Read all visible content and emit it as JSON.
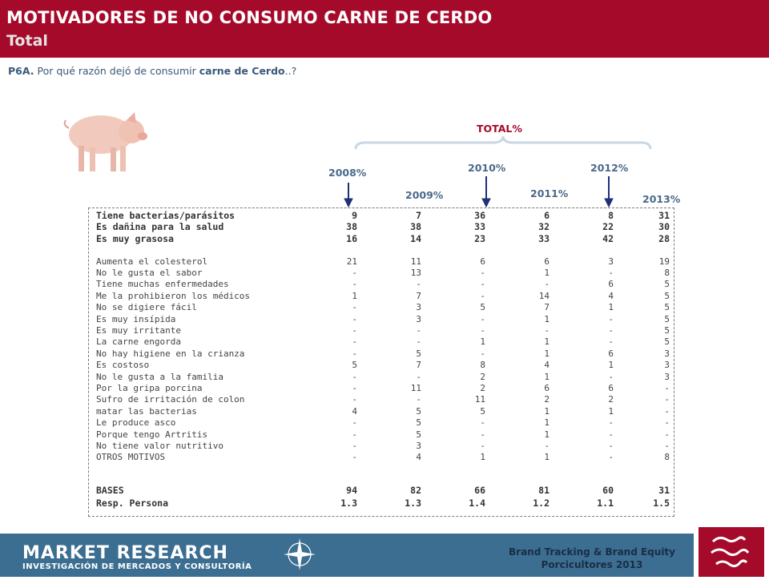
{
  "header": {
    "title": "MOTIVADORES DE NO CONSUMO CARNE DE CERDO",
    "subtitle": "Total"
  },
  "question": {
    "code": "P6A.",
    "text_before": "Por qué razón dejó de consumir",
    "highlight": "carne de Cerdo",
    "text_after": "..?"
  },
  "total_label": "TOTAL%",
  "years": [
    {
      "label": "2008%",
      "highlighted": true
    },
    {
      "label": "2009%",
      "highlighted": false
    },
    {
      "label": "2010%",
      "highlighted": true
    },
    {
      "label": "2011%",
      "highlighted": false
    },
    {
      "label": "2012%",
      "highlighted": true
    },
    {
      "label": "2013%",
      "highlighted": false
    }
  ],
  "rows": [
    {
      "label": "Tiene bacterias/parásitos",
      "values": [
        "9",
        "7",
        "36",
        "6",
        "8",
        "31"
      ],
      "bold": true
    },
    {
      "label": "Es dañina para la salud",
      "values": [
        "38",
        "38",
        "33",
        "32",
        "22",
        "30"
      ],
      "bold": true
    },
    {
      "label": "Es muy grasosa",
      "values": [
        "16",
        "14",
        "23",
        "33",
        "42",
        "28"
      ],
      "bold": true
    },
    {
      "label": "Aumenta el colesterol",
      "values": [
        "21",
        "11",
        "6",
        "6",
        "3",
        "19"
      ],
      "bold": false
    },
    {
      "label": "No le gusta el sabor",
      "values": [
        "-",
        "13",
        "-",
        "1",
        "-",
        "8"
      ],
      "bold": false
    },
    {
      "label": "Tiene muchas enfermedades",
      "values": [
        "-",
        "-",
        "-",
        "-",
        "6",
        "5"
      ],
      "bold": false
    },
    {
      "label": "Me la prohibieron los médicos",
      "values": [
        "1",
        "7",
        "-",
        "14",
        "4",
        "5"
      ],
      "bold": false
    },
    {
      "label": "No se digiere fácil",
      "values": [
        "-",
        "3",
        "5",
        "7",
        "1",
        "5"
      ],
      "bold": false
    },
    {
      "label": "Es muy insípida",
      "values": [
        "-",
        "3",
        "-",
        "1",
        "-",
        "5"
      ],
      "bold": false
    },
    {
      "label": "Es muy irritante",
      "values": [
        "-",
        "-",
        "-",
        "-",
        "-",
        "5"
      ],
      "bold": false
    },
    {
      "label": "La carne engorda",
      "values": [
        "-",
        "-",
        "1",
        "1",
        "-",
        "5"
      ],
      "bold": false
    },
    {
      "label": "No hay higiene en la crianza",
      "values": [
        "-",
        "5",
        "-",
        "1",
        "6",
        "3"
      ],
      "bold": false
    },
    {
      "label": "Es costoso",
      "values": [
        "5",
        "7",
        "8",
        "4",
        "1",
        "3"
      ],
      "bold": false
    },
    {
      "label": "No le gusta a la familia",
      "values": [
        "-",
        "-",
        "2",
        "1",
        "-",
        "3"
      ],
      "bold": false
    },
    {
      "label": "Por la gripa porcina",
      "values": [
        "-",
        "11",
        "2",
        "6",
        "6",
        "-"
      ],
      "bold": false
    },
    {
      "label": "Sufro de irritación de colon",
      "values": [
        "-",
        "-",
        "11",
        "2",
        "2",
        "-"
      ],
      "bold": false
    },
    {
      "label": "matar las bacterias",
      "values": [
        "4",
        "5",
        "5",
        "1",
        "1",
        "-"
      ],
      "bold": false
    },
    {
      "label": "Le produce asco",
      "values": [
        "-",
        "5",
        "-",
        "1",
        "-",
        "-"
      ],
      "bold": false
    },
    {
      "label": "Porque tengo Artritis",
      "values": [
        "-",
        "5",
        "-",
        "1",
        "-",
        "-"
      ],
      "bold": false
    },
    {
      "label": "No tiene valor nutritivo",
      "values": [
        "-",
        "3",
        "-",
        "-",
        "-",
        "-"
      ],
      "bold": false
    },
    {
      "label": "OTROS MOTIVOS",
      "values": [
        "-",
        "4",
        "1",
        "1",
        "-",
        "8"
      ],
      "bold": false
    }
  ],
  "bases": [
    {
      "label": "BASES",
      "values": [
        "94",
        "82",
        "66",
        "81",
        "60",
        "31"
      ]
    },
    {
      "label": "Resp. Persona",
      "values": [
        "1.3",
        "1.3",
        "1.4",
        "1.2",
        "1.1",
        "1.5"
      ]
    }
  ],
  "footer": {
    "brand": "MARKET RESEARCH",
    "brand_sub": "INVESTIGACIÓN DE MERCADOS Y CONSULTORÍA",
    "study_line1": "Brand Tracking & Brand Equity",
    "study_line2": "Porcicultores 2013"
  },
  "colors": {
    "header_bg": "#a50a2a",
    "footer_band": "#3b6e91",
    "arrow": "#1f2f7a",
    "year_label": "#4a6a8a"
  }
}
